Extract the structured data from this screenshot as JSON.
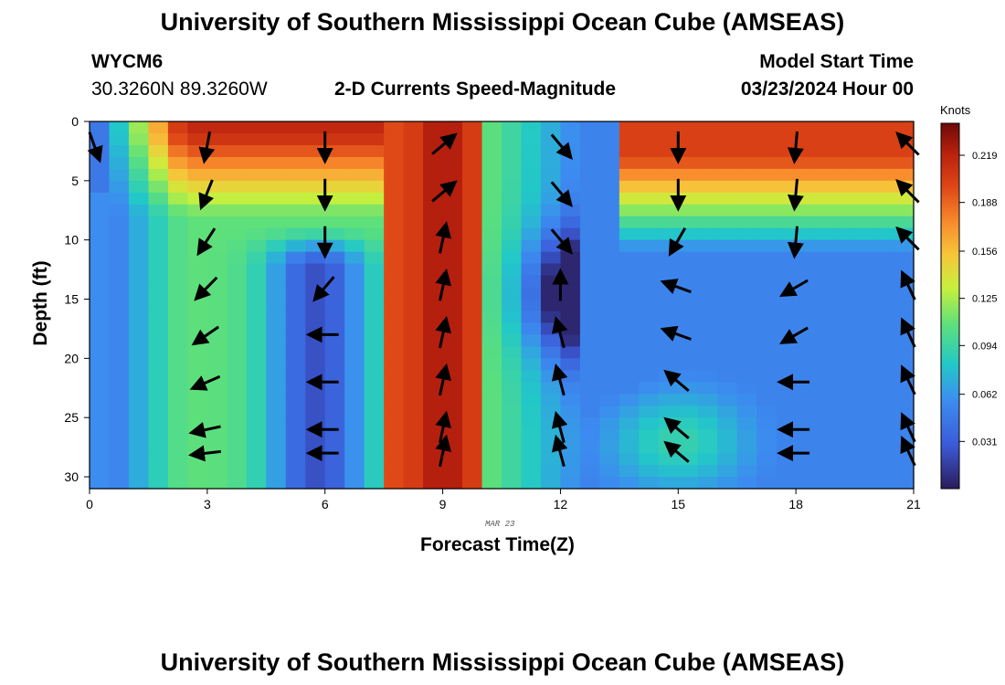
{
  "header": {
    "title_top": "University of Southern Mississippi Ocean Cube (AMSEAS)",
    "title_bottom": "University of Southern Mississippi Ocean Cube (AMSEAS)",
    "station_id": "WYCM6",
    "coords": "30.3260N  89.3260W",
    "plot_title": "2-D Currents Speed-Magnitude",
    "start_label": "Model Start Time",
    "start_value": "03/23/2024 Hour 00"
  },
  "chart_data": {
    "type": "heatmap",
    "title": "2-D Currents Speed-Magnitude",
    "xlabel": "Forecast Time(Z)",
    "ylabel": "Depth (ft)",
    "date_label": "MAR 23",
    "x_ticks": [
      0,
      3,
      6,
      9,
      12,
      15,
      18,
      21
    ],
    "y_ticks": [
      0,
      5,
      10,
      15,
      20,
      25,
      30
    ],
    "xlim": [
      0,
      21
    ],
    "ylim": [
      0,
      31
    ],
    "y_inverted": true,
    "colorbar": {
      "label": "Knots",
      "ticks": [
        "0.219",
        "0.188",
        "0.156",
        "0.125",
        "0.094",
        "0.062",
        "0.031"
      ],
      "tick_values": [
        0.219,
        0.188,
        0.156,
        0.125,
        0.094,
        0.062,
        0.031
      ],
      "range": [
        0.0,
        0.24
      ]
    },
    "vector_times": [
      0,
      3,
      6,
      9,
      12,
      15,
      18,
      21
    ],
    "vector_depths": [
      2,
      6,
      10,
      14,
      18,
      22,
      26,
      28
    ]
  }
}
